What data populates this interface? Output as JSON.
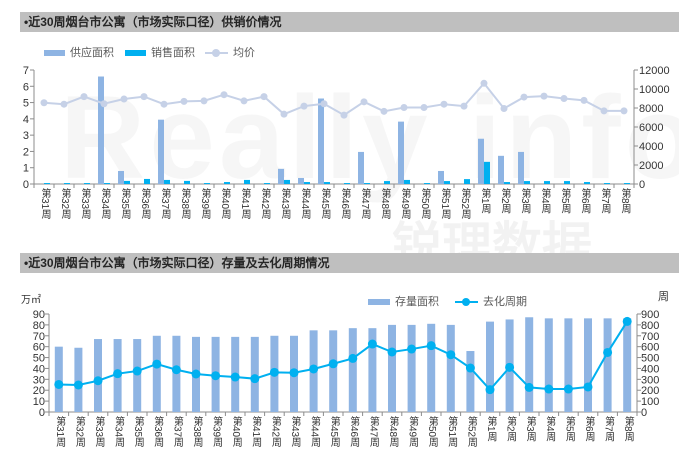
{
  "watermark": {
    "brand": "Really info",
    "cn": "锐理数据"
  },
  "colors": {
    "title_bar": "#bfbfbf",
    "supply_bar": "#8eb4e3",
    "sales_bar": "#00b0f0",
    "price_line": "#c6d1e7",
    "stock_bar": "#8eb4e3",
    "cycle_line": "#00b0f0",
    "axis": "#8c8c8c"
  },
  "section2_units": {
    "left": "万㎡",
    "right": "周"
  },
  "chart_data": [
    {
      "type": "bar+line",
      "title": "•近30周烟台市公寓（市场实际口径）供销价情况",
      "legend": "top-left",
      "categories": [
        "第31周",
        "第32周",
        "第33周",
        "第34周",
        "第35周",
        "第36周",
        "第37周",
        "第38周",
        "第39周",
        "第40周",
        "第41周",
        "第42周",
        "第43周",
        "第44周",
        "第45周",
        "第46周",
        "第47周",
        "第48周",
        "第49周",
        "第50周",
        "第51周",
        "第52周",
        "第1周",
        "第2周",
        "第3周",
        "第4周",
        "第5周",
        "第6周",
        "第7周",
        "第8周"
      ],
      "series": [
        {
          "name": "供应面积",
          "type": "bar",
          "axis": "left",
          "values": [
            0,
            0,
            0,
            6.6,
            0.8,
            0,
            3.95,
            0,
            0,
            0,
            0,
            0,
            0.93,
            0.37,
            5.25,
            0,
            1.97,
            0,
            3.83,
            0,
            0.8,
            0,
            2.78,
            1.73,
            1.97,
            0,
            0,
            0,
            0,
            0
          ]
        },
        {
          "name": "销售面积",
          "type": "bar",
          "axis": "left",
          "values": [
            0.06,
            0.06,
            0.06,
            0.06,
            0.19,
            0.31,
            0.25,
            0.19,
            0.06,
            0.12,
            0.25,
            0.06,
            0.25,
            0.12,
            0.12,
            0.06,
            0.06,
            0.18,
            0.25,
            0.06,
            0.18,
            0.3,
            1.36,
            0.12,
            0.18,
            0.18,
            0.18,
            0.12,
            0.06,
            0.06
          ]
        },
        {
          "name": "均价",
          "type": "line",
          "axis": "right",
          "values": [
            8550,
            8400,
            9200,
            8450,
            8950,
            9200,
            8400,
            8700,
            8750,
            9400,
            8750,
            9200,
            7350,
            8200,
            8450,
            7250,
            8650,
            7650,
            8050,
            8050,
            8400,
            8200,
            10600,
            7950,
            9150,
            9250,
            9000,
            8800,
            7700,
            7700
          ]
        }
      ],
      "y_left": {
        "range": [
          0,
          7
        ],
        "ticks": [
          "0",
          "1",
          "2",
          "3",
          "4",
          "5",
          "6",
          "7"
        ]
      },
      "y_right": {
        "range": [
          0,
          12000
        ],
        "ticks": [
          "0",
          "2000",
          "4000",
          "6000",
          "8000",
          "10000",
          "12000"
        ]
      },
      "grid": false
    },
    {
      "type": "bar+line",
      "title": "•近30周烟台市公寓（市场实际口径）存量及去化周期情况",
      "legend": "top-center",
      "categories": [
        "第31周",
        "第32周",
        "第33周",
        "第34周",
        "第35周",
        "第36周",
        "第37周",
        "第38周",
        "第39周",
        "第40周",
        "第41周",
        "第42周",
        "第43周",
        "第44周",
        "第45周",
        "第46周",
        "第47周",
        "第48周",
        "第49周",
        "第50周",
        "第51周",
        "第52周",
        "第1周",
        "第2周",
        "第3周",
        "第4周",
        "第5周",
        "第6周",
        "第7周",
        "第8周"
      ],
      "series": [
        {
          "name": "存量面积",
          "type": "bar",
          "axis": "left",
          "values": [
            60,
            59,
            67,
            67,
            67,
            70,
            70,
            69,
            69,
            69,
            69,
            70,
            70,
            75,
            75,
            77,
            77,
            80,
            80,
            81,
            80,
            56,
            83,
            85,
            87,
            86,
            86,
            86,
            86,
            86
          ]
        },
        {
          "name": "去化周期",
          "type": "line",
          "axis": "right",
          "values": [
            253,
            248,
            287,
            352,
            376,
            440,
            388,
            349,
            333,
            321,
            306,
            364,
            361,
            395,
            443,
            492,
            624,
            551,
            578,
            609,
            526,
            404,
            205,
            410,
            226,
            211,
            211,
            230,
            547,
            832
          ]
        }
      ],
      "ylabel": "万㎡",
      "y2label": "周",
      "y_left": {
        "range": [
          0,
          90
        ],
        "ticks": [
          "0",
          "10",
          "20",
          "30",
          "40",
          "50",
          "60",
          "70",
          "80",
          "90"
        ]
      },
      "y_right": {
        "range": [
          0,
          900
        ],
        "ticks": [
          "0",
          "100",
          "200",
          "300",
          "400",
          "500",
          "600",
          "700",
          "800",
          "900"
        ]
      },
      "grid": false
    }
  ]
}
